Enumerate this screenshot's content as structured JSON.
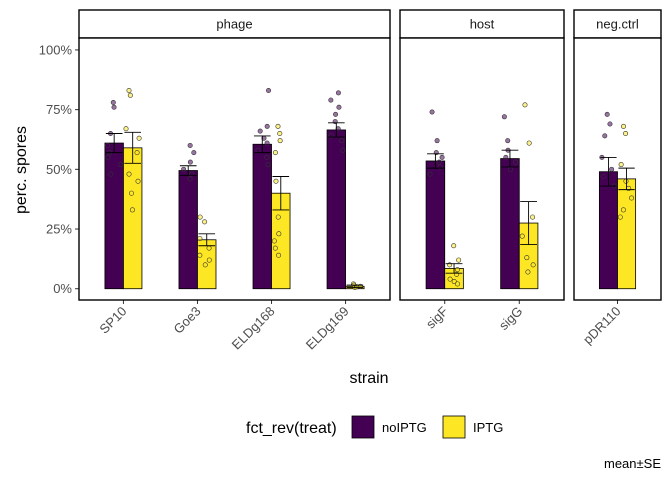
{
  "chart_data": {
    "type": "bar",
    "xlabel": "strain",
    "ylabel": "perc. spores",
    "ylim": [
      0,
      1.05
    ],
    "y_ticks": [
      0,
      0.25,
      0.5,
      0.75,
      1.0
    ],
    "y_tick_labels": [
      "0%",
      "25%",
      "50%",
      "75%",
      "100%"
    ],
    "caption": "mean±SE",
    "legend": {
      "title": "fct_rev(treat)",
      "placement": "bottom",
      "entries": [
        {
          "label": "noIPTG",
          "color": "#440154"
        },
        {
          "label": "IPTG",
          "color": "#FDE725"
        }
      ]
    },
    "facets": [
      {
        "label": "phage",
        "categories": [
          "SP10",
          "Goe3",
          "ELDg168",
          "ELDg169"
        ],
        "series": [
          {
            "treat": "noIPTG",
            "mean": [
              0.61,
              0.495,
              0.605,
              0.665
            ],
            "se": [
              0.04,
              0.02,
              0.035,
              0.03
            ],
            "points": [
              [
                0.78,
                0.76,
                0.65,
                0.6,
                0.57,
                0.55,
                0.52,
                0.48
              ],
              [
                0.6,
                0.57,
                0.53,
                0.5,
                0.48,
                0.46
              ],
              [
                0.83,
                0.68,
                0.66,
                0.63,
                0.61,
                0.58,
                0.55,
                0.52
              ],
              [
                0.82,
                0.79,
                0.76,
                0.73,
                0.7,
                0.67,
                0.64,
                0.62,
                0.58
              ]
            ]
          },
          {
            "treat": "IPTG",
            "mean": [
              0.59,
              0.205,
              0.4,
              0.01
            ],
            "se": [
              0.065,
              0.025,
              0.07,
              0.005
            ],
            "points": [
              [
                0.83,
                0.81,
                0.67,
                0.63,
                0.57,
                0.48,
                0.45,
                0.4,
                0.33
              ],
              [
                0.3,
                0.28,
                0.21,
                0.17,
                0.14,
                0.12,
                0.1
              ],
              [
                0.68,
                0.65,
                0.62,
                0.57,
                0.45,
                0.3,
                0.23,
                0.2,
                0.17,
                0.14
              ],
              [
                0.02,
                0.015,
                0.01,
                0.008,
                0.005
              ]
            ]
          }
        ]
      },
      {
        "label": "host",
        "categories": [
          "sigF",
          "sigG"
        ],
        "series": [
          {
            "treat": "noIPTG",
            "mean": [
              0.535,
              0.545
            ],
            "se": [
              0.03,
              0.035
            ],
            "points": [
              [
                0.74,
                0.62,
                0.57,
                0.55,
                0.53,
                0.51,
                0.48
              ],
              [
                0.72,
                0.62,
                0.58,
                0.55,
                0.53,
                0.5
              ]
            ]
          },
          {
            "treat": "IPTG",
            "mean": [
              0.085,
              0.275
            ],
            "se": [
              0.02,
              0.09
            ],
            "points": [
              [
                0.18,
                0.12,
                0.1,
                0.08,
                0.06,
                0.04,
                0.03,
                0.02
              ],
              [
                0.77,
                0.61,
                0.3,
                0.22,
                0.13,
                0.1,
                0.07
              ]
            ]
          }
        ]
      },
      {
        "label": "neg.ctrl",
        "categories": [
          "pDR110"
        ],
        "series": [
          {
            "treat": "noIPTG",
            "mean": [
              0.49
            ],
            "se": [
              0.06
            ],
            "points": [
              [
                0.73,
                0.69,
                0.64,
                0.55,
                0.5,
                0.47,
                0.43
              ]
            ]
          },
          {
            "treat": "IPTG",
            "mean": [
              0.46
            ],
            "se": [
              0.045
            ],
            "points": [
              [
                0.68,
                0.65,
                0.52,
                0.45,
                0.42,
                0.38,
                0.33,
                0.3
              ]
            ]
          }
        ]
      }
    ]
  }
}
